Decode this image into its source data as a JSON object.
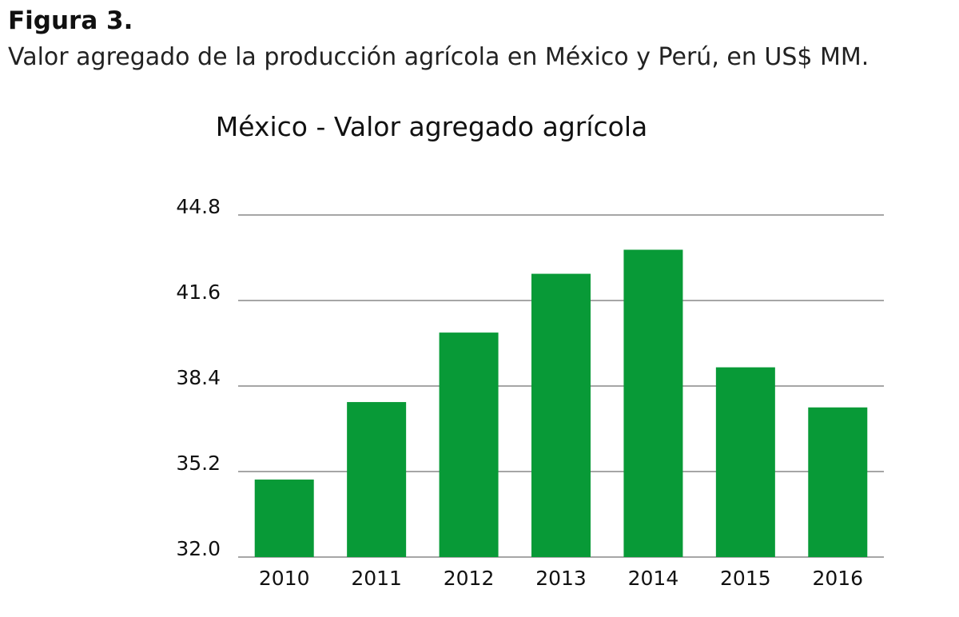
{
  "figure": {
    "label": "Figura 3.",
    "caption": "Valor agregado de la producción agrícola en México y Perú, en US$ MM."
  },
  "chart_data": {
    "type": "bar",
    "title": "México - Valor agregado agrícola",
    "xlabel": "",
    "ylabel": "",
    "categories": [
      "2010",
      "2011",
      "2012",
      "2013",
      "2014",
      "2015",
      "2016"
    ],
    "values": [
      34.9,
      37.8,
      40.4,
      42.6,
      43.5,
      39.1,
      37.6
    ],
    "ylim": [
      32.0,
      44.8
    ],
    "yticks": [
      "32.0",
      "35.2",
      "38.4",
      "41.6",
      "44.8"
    ],
    "grid": true,
    "legend": "none",
    "bar_color": "#089a37",
    "grid_color": "#a6a6a6"
  }
}
